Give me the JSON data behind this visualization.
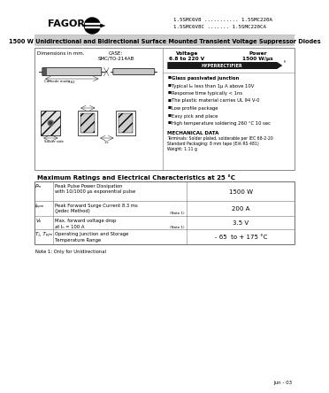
{
  "bg_color": "#ffffff",
  "title_bar_color": "#cccccc",
  "header_text": "1500 W Unidirectional and Bidirectional Surface Mounted Transient Voltage Suppressor Diodes",
  "part_numbers_line1": "1.5SMC6V8 ........... 1.5SMC220A",
  "part_numbers_line2": "1.5SMC6V8C ....... 1.5SMC220CA",
  "fagor_text": "FAGOR",
  "case_label": "CASE:\nSMC/TO-214AB",
  "voltage_label": "Voltage\n6.8 to 220 V",
  "power_label": "Power\n1500 W/μs",
  "hyperrectifier_text": "HYPERRECTIFIER",
  "features": [
    "Glass passivated junction",
    "Typical Iₘ less than 1μ A above 10V",
    "Response time typically < 1ns",
    "The plastic material carries UL 94 V-0",
    "Low profile package",
    "Easy pick and place",
    "High temperature soldering 260 °C 10 sec"
  ],
  "mech_title": "MECHANICAL DATA",
  "mech_lines": [
    "Terminals: Solder plated, solderable per IEC 68-2-20",
    "Standard Packaging: 8 mm tape (EIA RS 481)",
    "Weight: 1.11 g"
  ],
  "dim_label": "Dimensions in mm.",
  "table_title": "Maximum Ratings and Electrical Characteristics at 25 °C",
  "table_rows": [
    {
      "symbol": "Pₘ",
      "description": "Peak Pulse Power Dissipation\nwith 10/1000 μs exponential pulse",
      "note": "",
      "value": "1500 W"
    },
    {
      "symbol": "Iₚₚₘ",
      "description": "Peak Forward Surge Current 8.3 ms\n(Jedec Method)",
      "note": "(Note 1)",
      "value": "200 A"
    },
    {
      "symbol": "Vₙ",
      "description": "Max. forward voltage drop\nat Iₙ = 100 A",
      "note": "(Note 1)",
      "value": "3.5 V"
    },
    {
      "symbol": "Tⱼ, Tₚⱼₘ",
      "description": "Operating Junction and Storage\nTemperature Range",
      "note": "",
      "value": "- 65  to + 175 °C"
    }
  ],
  "note_text": "Note 1: Only for Unidirectional",
  "date_text": "Jun - 03",
  "border_color": "#000000",
  "grid_color": "#999999",
  "light_gray": "#e8e8e8",
  "med_gray": "#c0c0c0",
  "box_border": "#888888"
}
